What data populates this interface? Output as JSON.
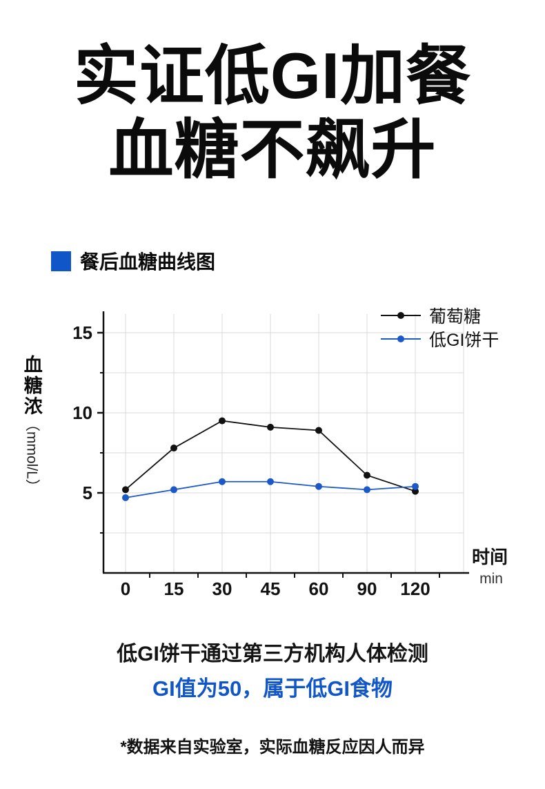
{
  "title": {
    "line1": "实证低GI加餐",
    "line2": "血糖不飙升"
  },
  "section": {
    "label": "餐后血糖曲线图"
  },
  "chart_data": {
    "type": "line",
    "title": "餐后血糖曲线图",
    "x": [
      0,
      15,
      30,
      45,
      60,
      90,
      120
    ],
    "x_spacing": "equal",
    "series": [
      {
        "name": "葡萄糖",
        "color": "#111111",
        "values": [
          5.2,
          7.8,
          9.5,
          9.1,
          8.9,
          6.1,
          5.1
        ]
      },
      {
        "name": "低GI饼干",
        "color": "#1b59c9",
        "values": [
          4.7,
          5.2,
          5.7,
          5.7,
          5.4,
          5.2,
          5.4
        ]
      }
    ],
    "ylabel_main": "血糖浓",
    "ylabel_unit": "（mmol/L）",
    "yticks": [
      5,
      10,
      15
    ],
    "ylim": [
      0,
      16.2
    ],
    "xlabel": "时间",
    "xunit": "min",
    "grid": true,
    "grid_color": "#d9d9d9",
    "legend_position": "top-right"
  },
  "footer": {
    "line1": "低GI饼干通过第三方机构人体检测",
    "line2": "GI值为50，属于低GI食物",
    "disclaimer": "*数据来自实验室，实际血糖反应因人而异"
  },
  "colors": {
    "accent_blue": "#1156c8",
    "series_black": "#111111",
    "series_blue": "#1b59c9",
    "grid": "#d9d9d9",
    "text_black": "#0b0b0b"
  }
}
